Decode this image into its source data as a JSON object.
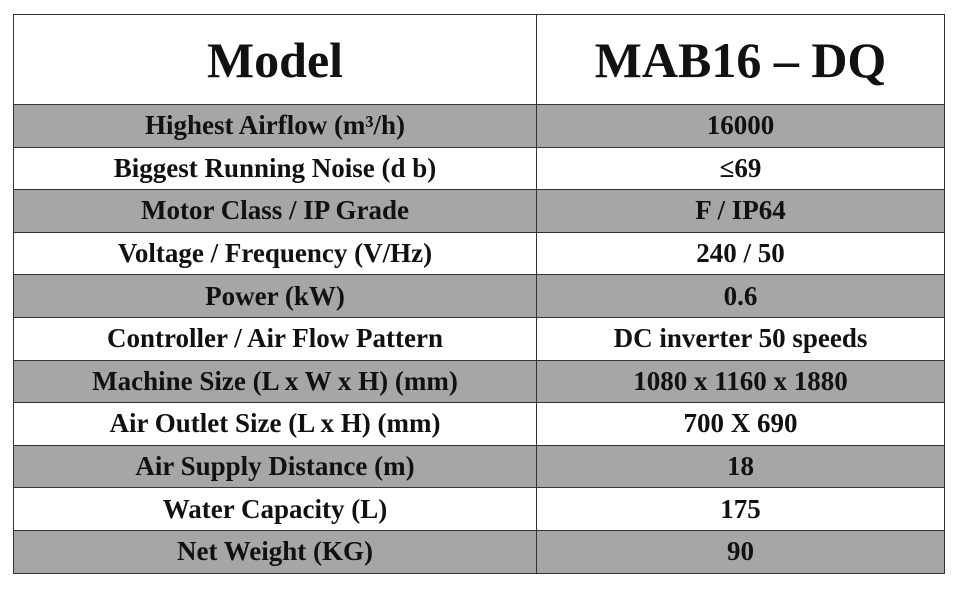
{
  "table": {
    "header": [
      "Model",
      "MAB16 – DQ"
    ],
    "rows": [
      [
        "Highest Airflow (m³/h)",
        "16000"
      ],
      [
        "Biggest Running Noise (d b)",
        "≤69"
      ],
      [
        "Motor Class / IP Grade",
        "F / IP64"
      ],
      [
        "Voltage / Frequency (V/Hz)",
        "240 / 50"
      ],
      [
        "Power (kW)",
        "0.6"
      ],
      [
        "Controller / Air Flow Pattern",
        "DC inverter 50 speeds"
      ],
      [
        "Machine Size (L x W x H) (mm)",
        "1080 x 1160 x 1880"
      ],
      [
        "Air Outlet Size (L x H) (mm)",
        "700 X 690"
      ],
      [
        "Air Supply Distance (m)",
        "18"
      ],
      [
        "Water Capacity (L)",
        "175"
      ],
      [
        "Net Weight (KG)",
        "90"
      ]
    ]
  }
}
